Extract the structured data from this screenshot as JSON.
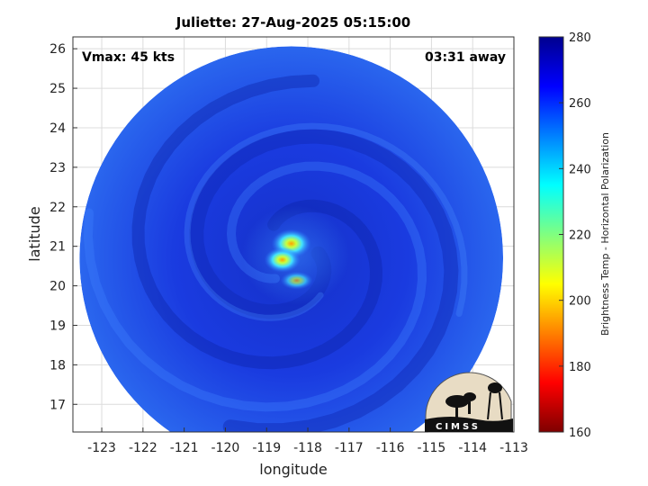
{
  "title": "Juliette: 27-Aug-2025 05:15:00",
  "annotations": {
    "vmax": "Vmax: 45 kts",
    "away": "03:31 away"
  },
  "x_axis": {
    "label": "longitude",
    "range": [
      -123.7,
      -113
    ],
    "ticks": [
      -123,
      -122,
      -121,
      -120,
      -119,
      -118,
      -117,
      -116,
      -115,
      -114,
      -113
    ]
  },
  "y_axis": {
    "label": "latitude",
    "range": [
      16.3,
      26.3
    ],
    "ticks": [
      17,
      18,
      19,
      20,
      21,
      22,
      23,
      24,
      25,
      26
    ]
  },
  "grid": true,
  "swath": {
    "center": [
      -118.4,
      20.7
    ],
    "radius_deg": 5.3,
    "background_color": "#1e4ee6"
  },
  "storm_center": {
    "lon": -118.4,
    "lat": 21.0
  },
  "colorbar": {
    "label": "Brightness Temp - Horizontal Polarization",
    "range": [
      160,
      280
    ],
    "ticks": [
      160,
      180,
      200,
      220,
      240,
      260,
      280
    ],
    "colormap": [
      "#7f0000",
      "#ff0000",
      "#ff8000",
      "#ffff00",
      "#80ff80",
      "#00ffff",
      "#0080ff",
      "#0000ff",
      "#00008f"
    ]
  },
  "logo": {
    "text": "CIMSS"
  }
}
